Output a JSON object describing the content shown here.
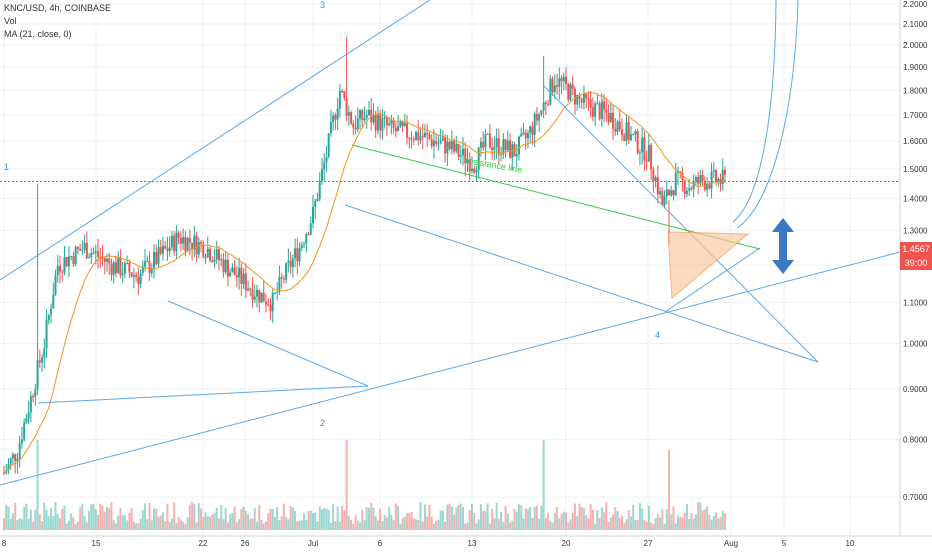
{
  "header": {
    "symbol_line": "KNC/USD, 4h, COINBASE",
    "vol_label": "Vol",
    "ma_label": "MA (21, close, 0)"
  },
  "price_labels": {
    "last_price": "1.4567",
    "countdown": "39:00"
  },
  "annotations": {
    "wave_1": "1",
    "wave_2": "2",
    "wave_3": "3",
    "wave_4": "4",
    "resistance": "resistance line"
  },
  "colors": {
    "up": "#26a69a",
    "down": "#ef5350",
    "ma": "#f7931a",
    "trendline": "#5aa9e6",
    "resistance": "#2ecc40",
    "price_line": "#ef5350",
    "arrow": "#3b78c4",
    "triangle_fill": "#f9c9a3"
  },
  "chart_data": {
    "type": "candlestick",
    "title": "KNC/USD, 4h, COINBASE",
    "x_tick_labels": [
      "8",
      "15",
      "22",
      "26",
      "Jul",
      "6",
      "13",
      "20",
      "27",
      "Aug",
      "5",
      "10"
    ],
    "y_tick_labels": [
      "2.2000",
      "2.1000",
      "2.0000",
      "1.9000",
      "1.8000",
      "1.7000",
      "1.6000",
      "1.5000",
      "1.4000",
      "1.3000",
      "1.2000",
      "1.1000",
      "1.0000",
      "0.9000",
      "0.8000",
      "0.7000"
    ],
    "ylim": [
      0.6,
      2.22
    ],
    "y_scale": "log",
    "last_price": 1.4567,
    "close_path_dates": [
      "Jun 8",
      "Jun 9",
      "Jun 10",
      "Jun 11",
      "Jun 12",
      "Jun 14",
      "Jun 16",
      "Jun 18",
      "Jun 20",
      "Jun 21",
      "Jun 23",
      "Jun 25",
      "Jun 27",
      "Jun 28",
      "Jun 29",
      "Jun 30",
      "Jul 1",
      "Jul 2",
      "Jul 3",
      "Jul 4",
      "Jul 5",
      "Jul 7",
      "Jul 9",
      "Jul 11",
      "Jul 13",
      "Jul 14",
      "Jul 16",
      "Jul 17",
      "Jul 18",
      "Jul 19",
      "Jul 21",
      "Jul 23",
      "Jul 24",
      "Jul 25",
      "Jul 26",
      "Jul 27",
      "Jul 28",
      "Jul 29",
      "Jul 30",
      "Jul 31"
    ],
    "close_path_values": [
      0.74,
      0.78,
      0.88,
      1.0,
      1.2,
      1.25,
      1.2,
      1.17,
      1.24,
      1.28,
      1.25,
      1.18,
      1.12,
      1.1,
      1.18,
      1.25,
      1.35,
      1.55,
      1.8,
      1.66,
      1.7,
      1.64,
      1.62,
      1.58,
      1.52,
      1.6,
      1.56,
      1.62,
      1.72,
      1.85,
      1.75,
      1.7,
      1.65,
      1.6,
      1.55,
      1.38,
      1.46,
      1.44,
      1.46,
      1.46
    ],
    "volume_note": "Volume histogram (Vol) along the bottom, colored by candle direction"
  }
}
